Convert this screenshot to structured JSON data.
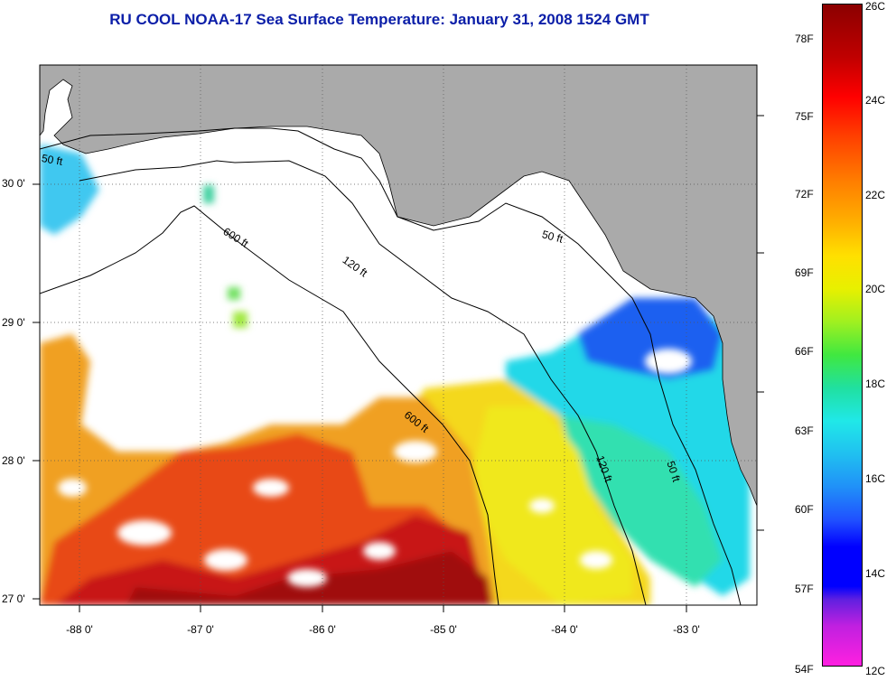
{
  "title": "RU COOL  NOAA-17  Sea Surface Temperature:  January 31, 2008 1524 GMT",
  "lat_labels": [
    "30 0'",
    "29 0'",
    "28 0'",
    "27 0'"
  ],
  "lon_labels": [
    "-88 0'",
    "-87 0'",
    "-86 0'",
    "-85 0'",
    "-84 0'",
    "-83 0'"
  ],
  "contours": [
    "50 ft",
    "600 ft",
    "120 ft",
    "50 ft",
    "600 ft",
    "120 ft",
    "50 ft"
  ],
  "colorbar": {
    "fahrenheit": [
      "78F",
      "75F",
      "72F",
      "69F",
      "66F",
      "63F",
      "60F",
      "57F",
      "54F"
    ],
    "celsius": [
      "26C",
      "24C",
      "22C",
      "20C",
      "18C",
      "16C",
      "14C",
      "12C"
    ]
  },
  "colors": {
    "title": "#0b1ea8",
    "land": "#aaaaaa",
    "cloud": "#ffffff",
    "warm": "#c8101a",
    "cold": "#1030e8"
  }
}
